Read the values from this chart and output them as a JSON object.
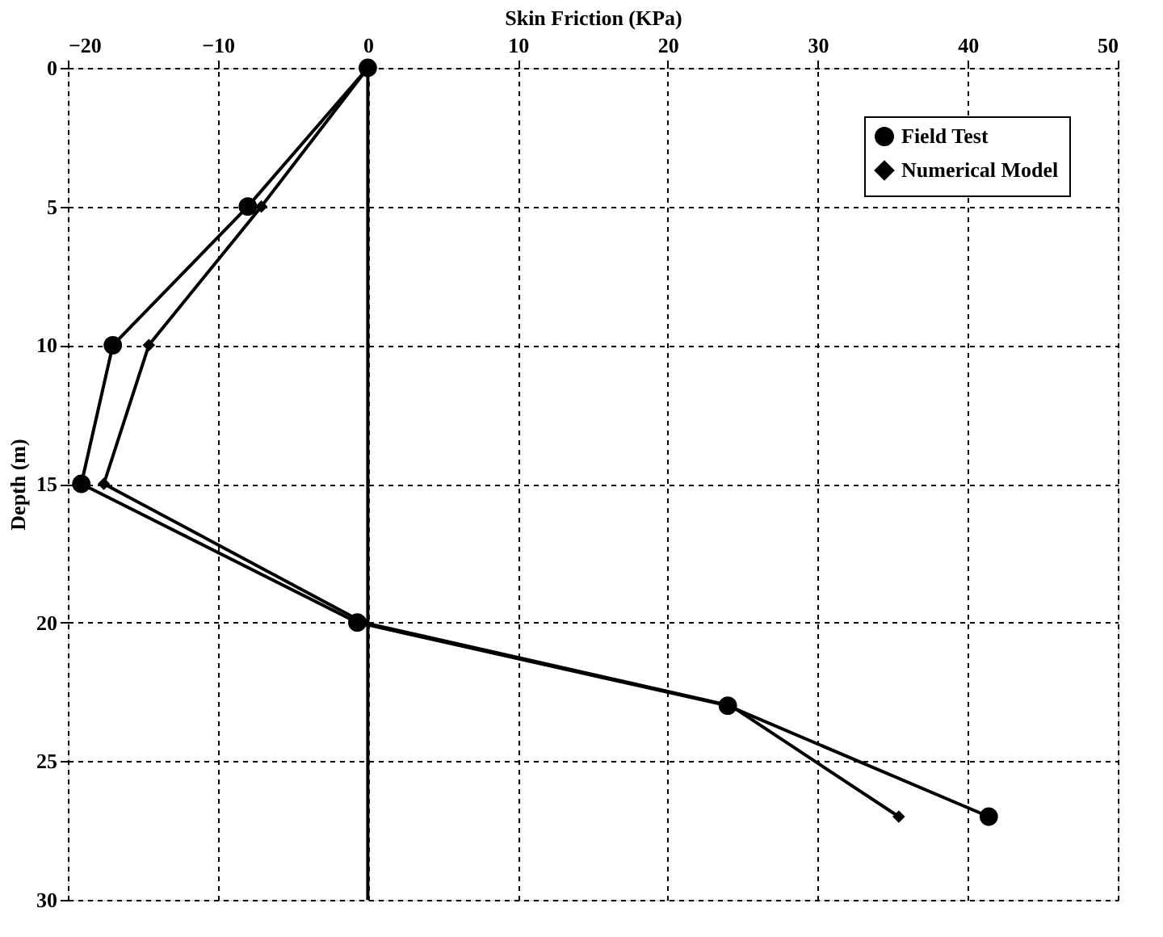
{
  "chart_data": {
    "type": "line",
    "xlabel": "Skin Friction (KPa)",
    "ylabel": "Depth (m)",
    "xlim": [
      -20,
      50
    ],
    "xticks": [
      -20,
      -10,
      0,
      10,
      20,
      30,
      40,
      50
    ],
    "ylim": [
      30,
      0
    ],
    "yticks": [
      0,
      5,
      10,
      15,
      20,
      25,
      30
    ],
    "series": [
      {
        "name": "Field Test",
        "color": "#000000",
        "marker": "circle",
        "x": [
          0,
          -8.0,
          -17.0,
          -19.1,
          -0.7,
          24.0,
          41.4
        ],
        "values": [
          0,
          5,
          10,
          15,
          20,
          23,
          27
        ]
      },
      {
        "name": "Numerical Model",
        "color": "#000000",
        "marker": "diamond",
        "x": [
          0,
          -7.1,
          -14.6,
          -17.6,
          -0.3,
          24.2,
          35.4
        ],
        "values": [
          0,
          5,
          10,
          15,
          20,
          23,
          27
        ]
      }
    ],
    "ref_lines": [
      {
        "axis": "x",
        "value": 0,
        "color": "#000000",
        "line_style": "solid"
      }
    ],
    "grid": true,
    "legend": "top right",
    "line_style": "solid"
  }
}
